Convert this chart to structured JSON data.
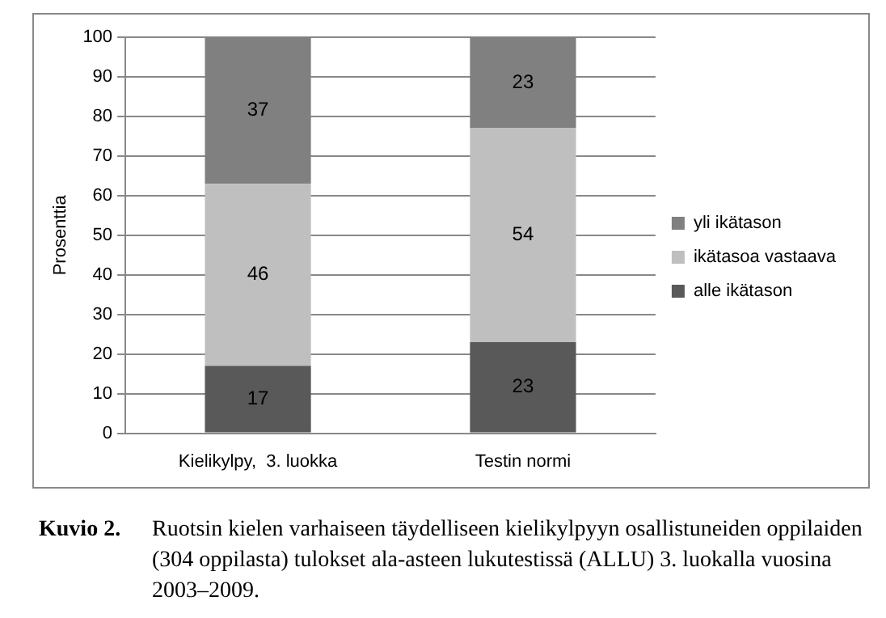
{
  "chart_data": {
    "type": "bar",
    "stacked": true,
    "ylabel": "Prosenttia",
    "categories": [
      "Kielikylpy,  3. luokka",
      "Testin normi"
    ],
    "series": [
      {
        "name": "alle ikätason",
        "color": "#595959",
        "values": [
          17,
          23
        ]
      },
      {
        "name": "ikätasoa vastaava",
        "color": "#bfbfbf",
        "values": [
          46,
          54
        ]
      },
      {
        "name": "yli ikätason",
        "color": "#808080",
        "values": [
          37,
          23
        ]
      }
    ],
    "ylim": [
      0,
      100
    ],
    "yticks": [
      0,
      10,
      20,
      30,
      40,
      50,
      60,
      70,
      80,
      90,
      100
    ],
    "grid": "y",
    "legend": "right",
    "data_labels": true,
    "annotations": [
      "Kuvio 2.",
      "Ruotsin kielen varhaiseen täydelliseen kielikylpyyn osallistuneiden oppilaiden (304 oppilasta) tulokset ala-asteen lukutestissä (ALLU) 3. luokalla vuosina 2003–2009."
    ]
  }
}
